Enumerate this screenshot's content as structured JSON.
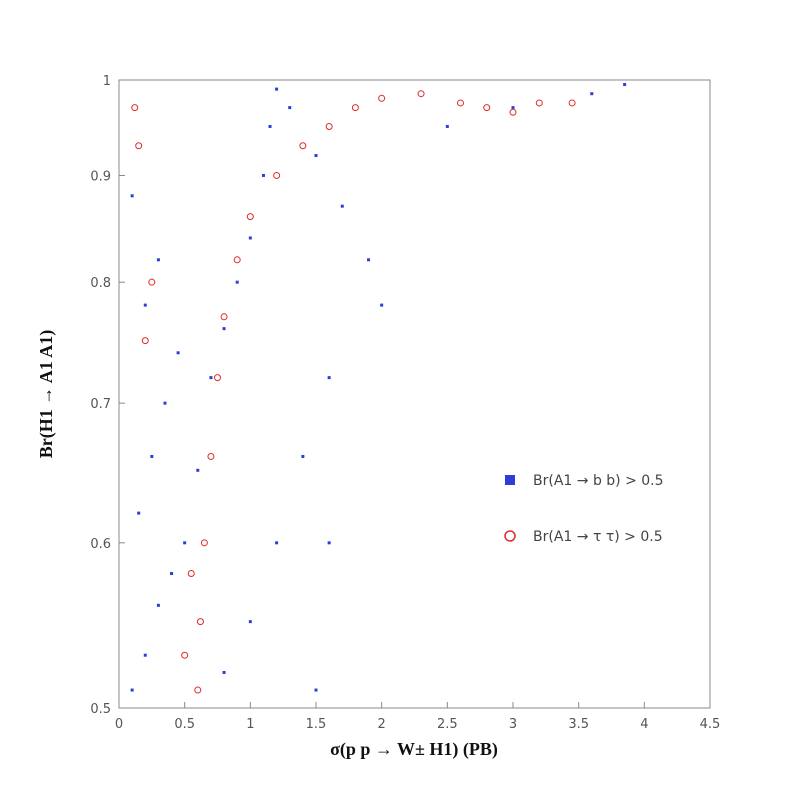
{
  "chart_data": {
    "type": "scatter",
    "title": "",
    "xlabel": "σ(p p → W± H1) (PB)",
    "ylabel": "Br(H1 → A1 A1)",
    "xlim": [
      0,
      4.5
    ],
    "ylim": [
      0.5,
      1.0
    ],
    "y_scale": "log",
    "x_ticks": [
      "0",
      "0.5",
      "1",
      "1.5",
      "2",
      "2.5",
      "3",
      "3.5",
      "4",
      "4.5"
    ],
    "y_ticks": [
      "0.5",
      "0.6",
      "0.7",
      "0.8",
      "0.9",
      "1"
    ],
    "grid": false,
    "legend_placement": "right-middle",
    "series": [
      {
        "name": "Br(A1 → b b) > 0.5",
        "marker": "filled-square",
        "color": "#2b3fd6",
        "points": [
          [
            0.1,
            0.51
          ],
          [
            0.2,
            0.53
          ],
          [
            0.3,
            0.56
          ],
          [
            0.4,
            0.58
          ],
          [
            0.15,
            0.62
          ],
          [
            0.25,
            0.66
          ],
          [
            0.35,
            0.7
          ],
          [
            0.45,
            0.74
          ],
          [
            0.2,
            0.78
          ],
          [
            0.3,
            0.82
          ],
          [
            0.1,
            0.88
          ],
          [
            0.5,
            0.6
          ],
          [
            0.6,
            0.65
          ],
          [
            0.7,
            0.72
          ],
          [
            0.8,
            0.76
          ],
          [
            0.9,
            0.8
          ],
          [
            1.0,
            0.84
          ],
          [
            1.1,
            0.9
          ],
          [
            1.15,
            0.95
          ],
          [
            1.2,
            0.99
          ],
          [
            1.3,
            0.97
          ],
          [
            1.5,
            0.92
          ],
          [
            1.7,
            0.87
          ],
          [
            1.9,
            0.82
          ],
          [
            2.0,
            0.78
          ],
          [
            1.6,
            0.72
          ],
          [
            1.4,
            0.66
          ],
          [
            1.2,
            0.6
          ],
          [
            1.0,
            0.55
          ],
          [
            0.8,
            0.52
          ],
          [
            1.5,
            0.51
          ],
          [
            1.6,
            0.6
          ],
          [
            2.5,
            0.95
          ],
          [
            3.0,
            0.97
          ],
          [
            3.6,
            0.985
          ],
          [
            3.85,
            0.995
          ]
        ]
      },
      {
        "name": "Br(A1 → τ τ) > 0.5",
        "marker": "open-circle",
        "color": "#e02a2a",
        "points": [
          [
            0.6,
            0.51
          ],
          [
            0.62,
            0.55
          ],
          [
            0.65,
            0.6
          ],
          [
            0.7,
            0.66
          ],
          [
            0.75,
            0.72
          ],
          [
            0.8,
            0.77
          ],
          [
            0.9,
            0.82
          ],
          [
            1.0,
            0.86
          ],
          [
            1.2,
            0.9
          ],
          [
            1.4,
            0.93
          ],
          [
            1.6,
            0.95
          ],
          [
            1.8,
            0.97
          ],
          [
            2.0,
            0.98
          ],
          [
            2.3,
            0.985
          ],
          [
            2.6,
            0.975
          ],
          [
            2.8,
            0.97
          ],
          [
            3.0,
            0.965
          ],
          [
            3.2,
            0.975
          ],
          [
            3.45,
            0.975
          ],
          [
            0.15,
            0.93
          ],
          [
            0.12,
            0.97
          ],
          [
            0.25,
            0.8
          ],
          [
            0.2,
            0.75
          ],
          [
            0.5,
            0.53
          ],
          [
            0.55,
            0.58
          ]
        ]
      }
    ]
  }
}
